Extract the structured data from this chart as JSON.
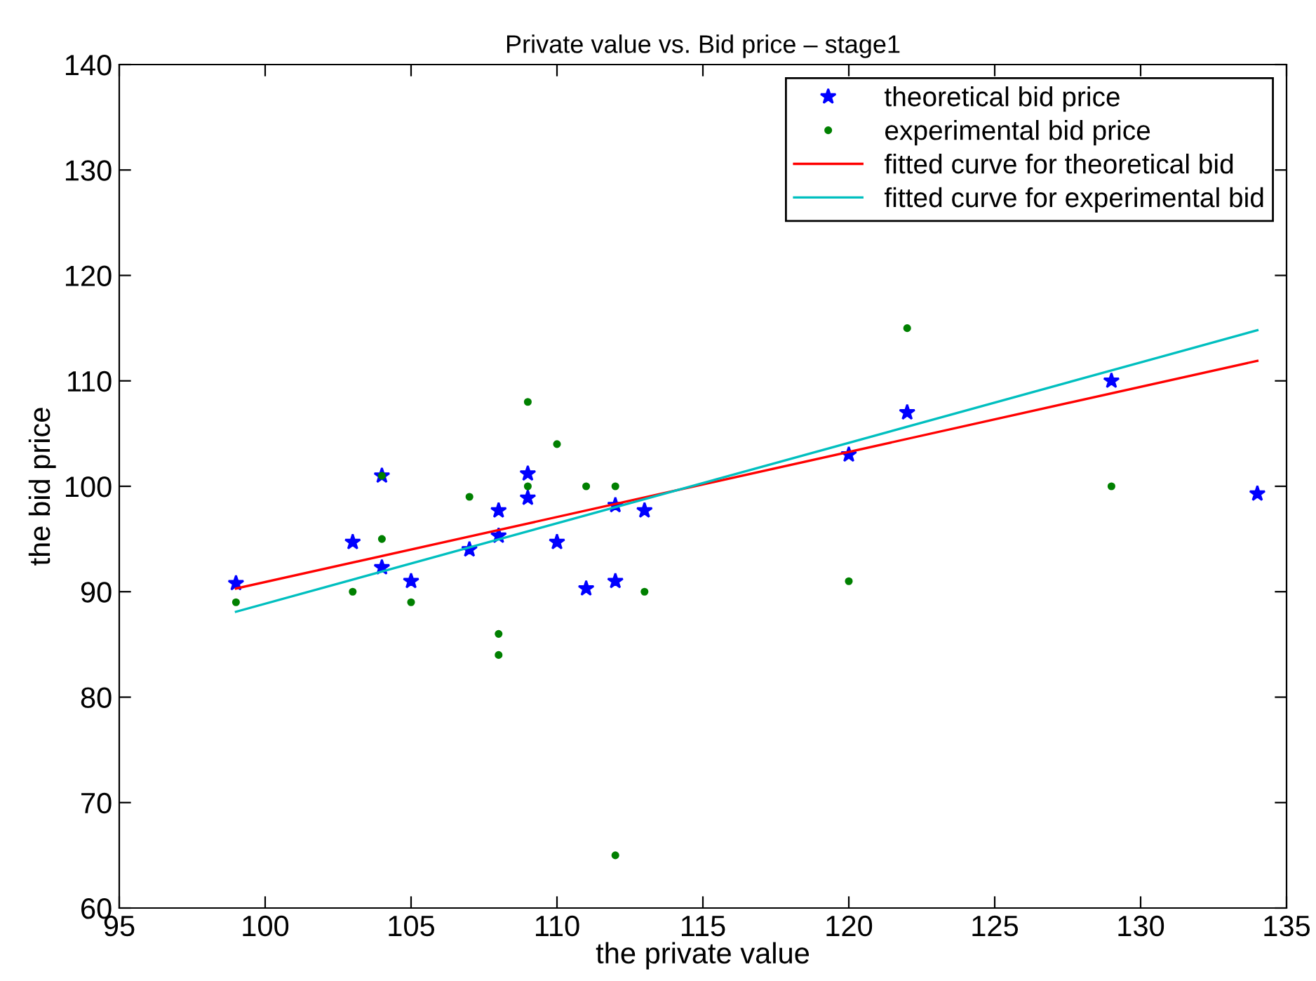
{
  "chart_data": {
    "type": "scatter",
    "title": "Private value vs. Bid price – stage1",
    "xlabel": "the private value",
    "ylabel": "the bid price",
    "xlim": [
      95,
      135
    ],
    "xticks": [
      95,
      100,
      105,
      110,
      115,
      120,
      125,
      130,
      135
    ],
    "ylim": [
      60,
      140
    ],
    "yticks": [
      60,
      70,
      80,
      90,
      100,
      110,
      120,
      130,
      140
    ],
    "grid": false,
    "legend": "top right",
    "series": [
      {
        "name": "theoretical bid price",
        "marker": "star",
        "color": "#0000ff",
        "x": [
          99,
          103,
          104,
          104,
          105,
          107,
          108,
          108,
          109,
          109,
          110,
          111,
          112,
          112,
          113,
          120,
          122,
          129,
          134
        ],
        "values": [
          90.8,
          94.7,
          101,
          92.3,
          91,
          94,
          97.7,
          95.3,
          101.2,
          98.9,
          94.7,
          90.3,
          91,
          98.2,
          97.7,
          103,
          107,
          110,
          99.3
        ]
      },
      {
        "name": "experimental bid price",
        "marker": "circle",
        "color": "#008000",
        "x": [
          99,
          103,
          104,
          104,
          105,
          107,
          108,
          108,
          109,
          109,
          110,
          111,
          112,
          112,
          113,
          120,
          122,
          129
        ],
        "values": [
          89,
          90,
          101,
          95,
          89,
          99,
          86,
          84,
          108,
          100,
          104,
          100,
          100,
          65,
          90,
          91,
          115,
          100
        ]
      },
      {
        "name": "fitted curve for theoretical bid",
        "type": "line",
        "marker": "none",
        "line_style": "solid",
        "color": "#ff0000",
        "x": [
          99,
          134
        ],
        "values": [
          90.3,
          111.9
        ]
      },
      {
        "name": "fitted curve for experimental bid",
        "type": "line",
        "marker": "none",
        "line_style": "solid",
        "color": "#00bfbf",
        "x": [
          99,
          134
        ],
        "values": [
          88.1,
          114.8
        ]
      }
    ]
  }
}
